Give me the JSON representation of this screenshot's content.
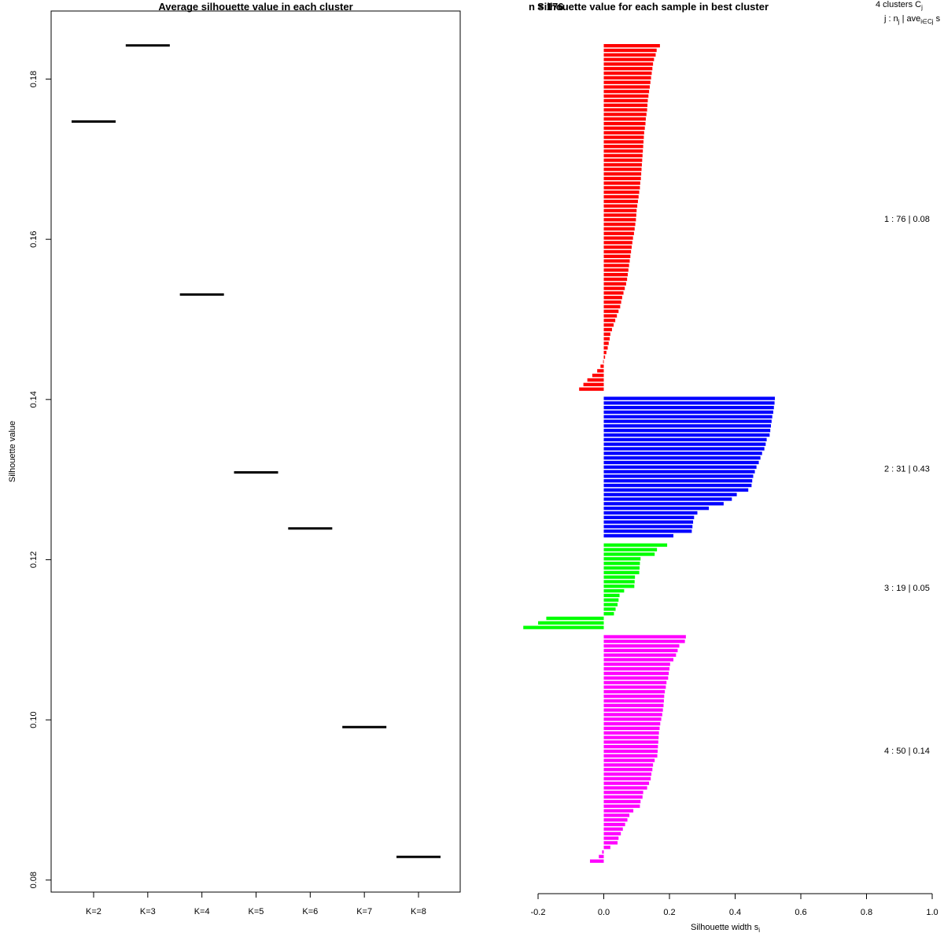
{
  "chart_data": [
    {
      "type": "scatter",
      "marker": "horizontal-segment",
      "title": "Average silhouette value in each cluster",
      "xlabel": "",
      "ylabel": "Silhouette value",
      "categories": [
        "K=2",
        "K=3",
        "K=4",
        "K=5",
        "K=6",
        "K=7",
        "K=8"
      ],
      "values": [
        0.1747,
        0.1842,
        0.1531,
        0.1309,
        0.1239,
        0.0991,
        0.0829
      ],
      "ylim": [
        0.0785,
        0.1885
      ],
      "yticks": [
        "0.08",
        "0.10",
        "0.12",
        "0.14",
        "0.16",
        "0.18"
      ],
      "grid": false,
      "color": "#000000"
    },
    {
      "type": "bar",
      "orientation": "horizontal",
      "title": "Silhouette value for each sample in best cluster",
      "subtitle_overlapped": "n = 176",
      "xlabel": "Silhouette width s",
      "xlabel_subscript": "i",
      "ylabel": "",
      "xlim": [
        -0.2,
        1.0
      ],
      "xticks": [
        "-0.2",
        "0.0",
        "0.2",
        "0.4",
        "0.6",
        "0.8",
        "1.0"
      ],
      "legend_header": {
        "line1": "4  clusters  C",
        "line1_sub": "j",
        "line2": "j :  n",
        "line2_sub": "j",
        "line2_rest": " | ave",
        "line2_sub2": "i∈Cj",
        "line2_tail": "  s"
      },
      "clusters": [
        {
          "id": 1,
          "n": 76,
          "avg": "0.08",
          "label": "1 :   76  |  0.08",
          "color": "#ff0000",
          "values": [
            0.171,
            0.161,
            0.158,
            0.153,
            0.15,
            0.148,
            0.146,
            0.144,
            0.142,
            0.14,
            0.138,
            0.136,
            0.134,
            0.133,
            0.132,
            0.13,
            0.128,
            0.127,
            0.125,
            0.123,
            0.122,
            0.121,
            0.12,
            0.119,
            0.118,
            0.117,
            0.116,
            0.115,
            0.114,
            0.113,
            0.111,
            0.11,
            0.108,
            0.106,
            0.104,
            0.102,
            0.1,
            0.099,
            0.098,
            0.096,
            0.094,
            0.092,
            0.089,
            0.087,
            0.085,
            0.083,
            0.081,
            0.079,
            0.077,
            0.075,
            0.073,
            0.071,
            0.068,
            0.064,
            0.06,
            0.056,
            0.053,
            0.05,
            0.045,
            0.04,
            0.035,
            0.03,
            0.025,
            0.02,
            0.018,
            0.015,
            0.012,
            0.008,
            0.004,
            -0.002,
            -0.01,
            -0.02,
            -0.035,
            -0.05,
            -0.062,
            -0.075
          ]
        },
        {
          "id": 2,
          "n": 31,
          "avg": "0.43",
          "label": "2 :   31  |  0.43",
          "color": "#0000ff",
          "values": [
            0.521,
            0.52,
            0.518,
            0.516,
            0.513,
            0.511,
            0.509,
            0.507,
            0.505,
            0.496,
            0.493,
            0.489,
            0.482,
            0.477,
            0.472,
            0.465,
            0.46,
            0.455,
            0.452,
            0.45,
            0.44,
            0.405,
            0.39,
            0.365,
            0.32,
            0.285,
            0.275,
            0.272,
            0.27,
            0.268,
            0.212
          ]
        },
        {
          "id": 3,
          "n": 19,
          "avg": "0.05",
          "label": "3 :   19  |  0.05",
          "color": "#00ff00",
          "values": [
            0.193,
            0.162,
            0.155,
            0.112,
            0.11,
            0.109,
            0.108,
            0.095,
            0.094,
            0.093,
            0.062,
            0.048,
            0.045,
            0.042,
            0.036,
            0.031,
            -0.175,
            -0.2,
            -0.245
          ]
        },
        {
          "id": 4,
          "n": 50,
          "avg": "0.14",
          "label": "4 :   50  |  0.14",
          "color": "#ff00ff",
          "values": [
            0.25,
            0.247,
            0.23,
            0.225,
            0.22,
            0.212,
            0.202,
            0.2,
            0.198,
            0.196,
            0.191,
            0.189,
            0.186,
            0.184,
            0.183,
            0.182,
            0.18,
            0.178,
            0.175,
            0.172,
            0.17,
            0.168,
            0.167,
            0.166,
            0.165,
            0.164,
            0.163,
            0.155,
            0.15,
            0.148,
            0.145,
            0.143,
            0.138,
            0.132,
            0.12,
            0.118,
            0.112,
            0.11,
            0.09,
            0.078,
            0.072,
            0.065,
            0.058,
            0.052,
            0.045,
            0.042,
            0.02,
            -0.005,
            -0.015,
            -0.042
          ]
        }
      ],
      "grid": false
    }
  ]
}
